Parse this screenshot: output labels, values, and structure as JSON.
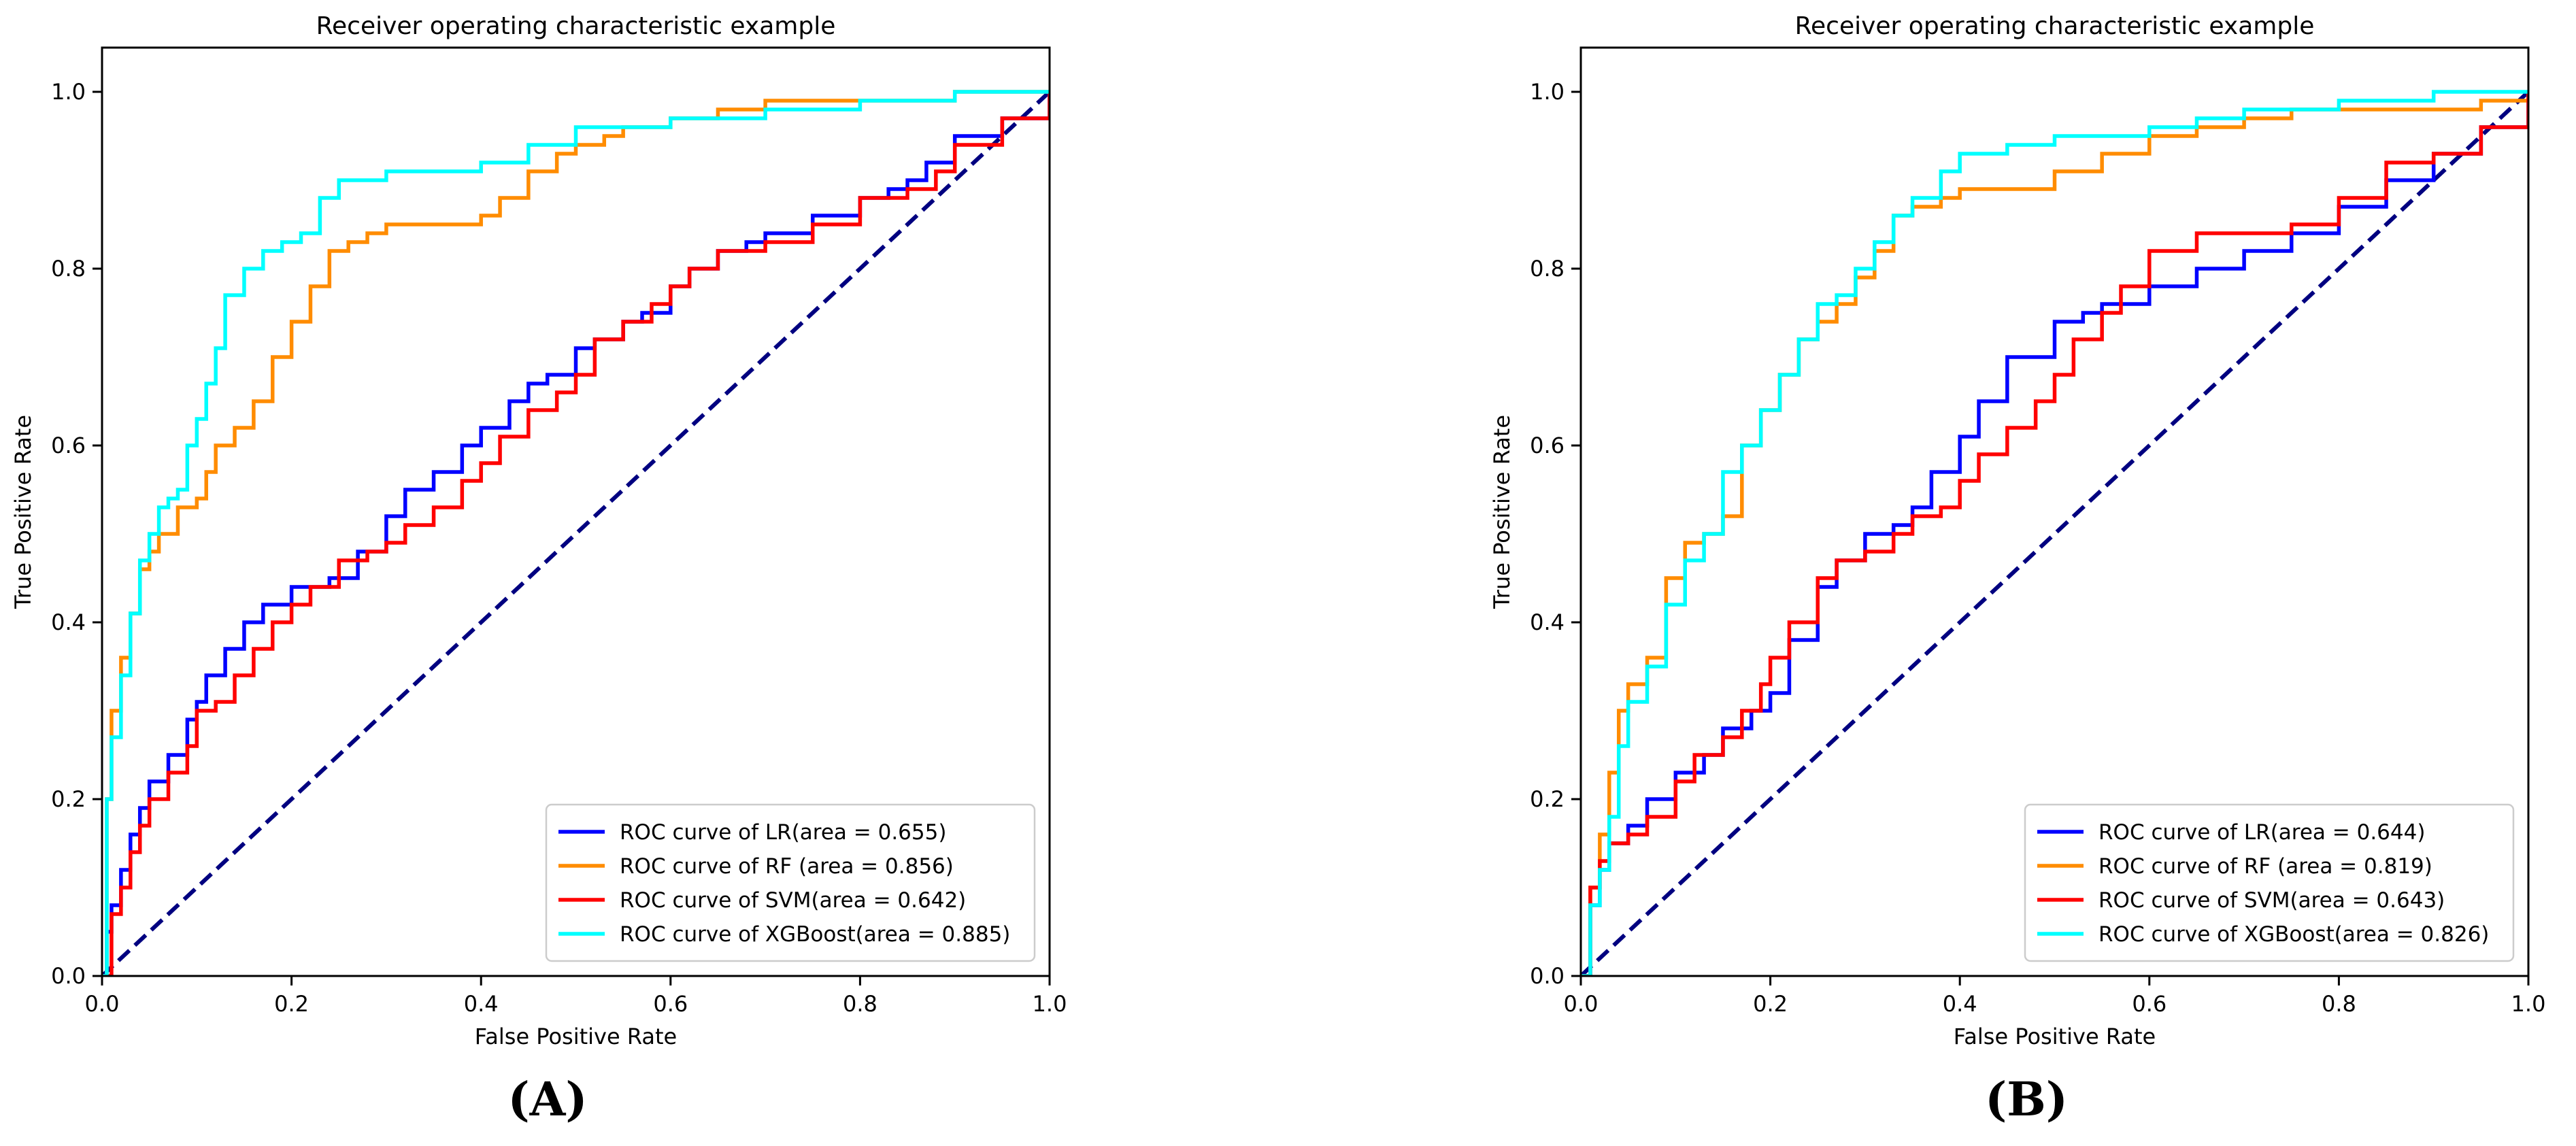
{
  "chart_data": [
    {
      "type": "line",
      "panel_label": "(A)",
      "title": "Receiver operating characteristic example",
      "xlabel": "False Positive Rate",
      "ylabel": "True Positive Rate",
      "xlim": [
        0,
        1
      ],
      "ylim": [
        0,
        1.05
      ],
      "xticks": [
        "0.0",
        "0.2",
        "0.4",
        "0.6",
        "0.8",
        "1.0"
      ],
      "yticks": [
        "0.0",
        "0.2",
        "0.4",
        "0.6",
        "0.8",
        "1.0"
      ],
      "grid": false,
      "legend_position": "lower-right",
      "series": [
        {
          "name": "ROC curve of LR(area = 0.655)",
          "color": "#0000ff",
          "x": [
            0,
            0.005,
            0.01,
            0.02,
            0.03,
            0.04,
            0.05,
            0.07,
            0.09,
            0.1,
            0.11,
            0.13,
            0.15,
            0.17,
            0.2,
            0.24,
            0.27,
            0.3,
            0.32,
            0.35,
            0.38,
            0.4,
            0.43,
            0.45,
            0.47,
            0.5,
            0.52,
            0.55,
            0.57,
            0.6,
            0.62,
            0.65,
            0.68,
            0.7,
            0.75,
            0.8,
            0.83,
            0.85,
            0.87,
            0.9,
            0.95,
            1.0
          ],
          "y": [
            0,
            0.05,
            0.08,
            0.12,
            0.16,
            0.19,
            0.22,
            0.25,
            0.29,
            0.31,
            0.34,
            0.37,
            0.4,
            0.42,
            0.44,
            0.45,
            0.48,
            0.52,
            0.55,
            0.57,
            0.6,
            0.62,
            0.65,
            0.67,
            0.68,
            0.71,
            0.72,
            0.74,
            0.75,
            0.78,
            0.8,
            0.82,
            0.83,
            0.84,
            0.86,
            0.88,
            0.89,
            0.9,
            0.92,
            0.95,
            0.97,
            1.0
          ]
        },
        {
          "name": "ROC curve of RF (area = 0.856)",
          "color": "#ff8c00",
          "x": [
            0,
            0.005,
            0.01,
            0.02,
            0.03,
            0.04,
            0.05,
            0.06,
            0.08,
            0.1,
            0.11,
            0.12,
            0.14,
            0.16,
            0.18,
            0.2,
            0.22,
            0.24,
            0.26,
            0.28,
            0.3,
            0.35,
            0.4,
            0.42,
            0.45,
            0.48,
            0.5,
            0.53,
            0.55,
            0.6,
            0.65,
            0.7,
            0.8,
            0.9,
            1.0
          ],
          "y": [
            0,
            0.2,
            0.3,
            0.36,
            0.41,
            0.46,
            0.48,
            0.5,
            0.53,
            0.54,
            0.57,
            0.6,
            0.62,
            0.65,
            0.7,
            0.74,
            0.78,
            0.82,
            0.83,
            0.84,
            0.85,
            0.85,
            0.86,
            0.88,
            0.91,
            0.93,
            0.94,
            0.95,
            0.96,
            0.97,
            0.98,
            0.99,
            0.99,
            1.0,
            1.0
          ]
        },
        {
          "name": "ROC curve of SVM(area = 0.642)",
          "color": "#ff0000",
          "x": [
            0,
            0.01,
            0.02,
            0.03,
            0.04,
            0.05,
            0.07,
            0.09,
            0.1,
            0.12,
            0.14,
            0.16,
            0.18,
            0.2,
            0.22,
            0.25,
            0.28,
            0.3,
            0.32,
            0.35,
            0.38,
            0.4,
            0.42,
            0.45,
            0.48,
            0.5,
            0.52,
            0.55,
            0.58,
            0.6,
            0.62,
            0.65,
            0.7,
            0.75,
            0.8,
            0.85,
            0.88,
            0.9,
            0.95,
            1.0
          ],
          "y": [
            0,
            0.07,
            0.1,
            0.14,
            0.17,
            0.2,
            0.23,
            0.26,
            0.3,
            0.31,
            0.34,
            0.37,
            0.4,
            0.42,
            0.44,
            0.47,
            0.48,
            0.49,
            0.51,
            0.53,
            0.56,
            0.58,
            0.61,
            0.64,
            0.66,
            0.68,
            0.72,
            0.74,
            0.76,
            0.78,
            0.8,
            0.82,
            0.83,
            0.85,
            0.88,
            0.89,
            0.91,
            0.94,
            0.97,
            1.0
          ]
        },
        {
          "name": "ROC curve of XGBoost(area = 0.885)",
          "color": "#00ffff",
          "x": [
            0,
            0.005,
            0.01,
            0.02,
            0.03,
            0.04,
            0.05,
            0.06,
            0.07,
            0.08,
            0.09,
            0.1,
            0.11,
            0.12,
            0.13,
            0.15,
            0.17,
            0.19,
            0.21,
            0.23,
            0.25,
            0.27,
            0.3,
            0.35,
            0.4,
            0.45,
            0.5,
            0.55,
            0.6,
            0.7,
            0.8,
            0.9,
            1.0
          ],
          "y": [
            0,
            0.2,
            0.27,
            0.34,
            0.41,
            0.47,
            0.5,
            0.53,
            0.54,
            0.55,
            0.6,
            0.63,
            0.67,
            0.71,
            0.77,
            0.8,
            0.82,
            0.83,
            0.84,
            0.88,
            0.9,
            0.9,
            0.91,
            0.91,
            0.92,
            0.94,
            0.96,
            0.96,
            0.97,
            0.98,
            0.99,
            1.0,
            1.0
          ]
        },
        {
          "name": "chance",
          "color": "#000080",
          "dashed": true,
          "in_legend": false,
          "x": [
            0,
            1
          ],
          "y": [
            0,
            1
          ]
        }
      ]
    },
    {
      "type": "line",
      "panel_label": "(B)",
      "title": "Receiver operating characteristic example",
      "xlabel": "False Positive Rate",
      "ylabel": "True Positive Rate",
      "xlim": [
        0,
        1
      ],
      "ylim": [
        0,
        1.05
      ],
      "xticks": [
        "0.0",
        "0.2",
        "0.4",
        "0.6",
        "0.8",
        "1.0"
      ],
      "yticks": [
        "0.0",
        "0.2",
        "0.4",
        "0.6",
        "0.8",
        "1.0"
      ],
      "grid": false,
      "legend_position": "lower-right",
      "series": [
        {
          "name": "ROC curve of LR(area = 0.644)",
          "color": "#0000ff",
          "x": [
            0,
            0.01,
            0.02,
            0.03,
            0.05,
            0.07,
            0.1,
            0.13,
            0.15,
            0.18,
            0.2,
            0.22,
            0.25,
            0.27,
            0.3,
            0.33,
            0.35,
            0.37,
            0.4,
            0.42,
            0.45,
            0.48,
            0.5,
            0.53,
            0.55,
            0.6,
            0.65,
            0.7,
            0.75,
            0.8,
            0.85,
            0.9,
            0.95,
            1.0
          ],
          "y": [
            0,
            0.08,
            0.12,
            0.15,
            0.17,
            0.2,
            0.23,
            0.25,
            0.28,
            0.3,
            0.32,
            0.38,
            0.44,
            0.47,
            0.5,
            0.51,
            0.53,
            0.57,
            0.61,
            0.65,
            0.7,
            0.7,
            0.74,
            0.75,
            0.76,
            0.78,
            0.8,
            0.82,
            0.84,
            0.87,
            0.9,
            0.93,
            0.96,
            1.0
          ]
        },
        {
          "name": "ROC curve of RF (area = 0.819)",
          "color": "#ff8c00",
          "x": [
            0,
            0.01,
            0.02,
            0.03,
            0.04,
            0.05,
            0.07,
            0.09,
            0.11,
            0.13,
            0.15,
            0.17,
            0.19,
            0.21,
            0.23,
            0.25,
            0.27,
            0.29,
            0.31,
            0.33,
            0.35,
            0.38,
            0.4,
            0.45,
            0.5,
            0.55,
            0.6,
            0.65,
            0.7,
            0.75,
            0.8,
            0.85,
            0.9,
            0.95,
            1.0
          ],
          "y": [
            0,
            0.1,
            0.16,
            0.23,
            0.3,
            0.33,
            0.36,
            0.45,
            0.49,
            0.5,
            0.52,
            0.6,
            0.64,
            0.68,
            0.72,
            0.74,
            0.76,
            0.79,
            0.82,
            0.86,
            0.87,
            0.88,
            0.89,
            0.89,
            0.91,
            0.93,
            0.95,
            0.96,
            0.97,
            0.98,
            0.98,
            0.98,
            0.98,
            0.99,
            1.0
          ]
        },
        {
          "name": "ROC curve of SVM(area = 0.643)",
          "color": "#ff0000",
          "x": [
            0,
            0.01,
            0.02,
            0.03,
            0.05,
            0.07,
            0.1,
            0.12,
            0.15,
            0.17,
            0.19,
            0.2,
            0.22,
            0.25,
            0.27,
            0.3,
            0.33,
            0.35,
            0.38,
            0.4,
            0.42,
            0.45,
            0.48,
            0.5,
            0.52,
            0.55,
            0.57,
            0.6,
            0.65,
            0.7,
            0.75,
            0.8,
            0.85,
            0.9,
            0.95,
            1.0
          ],
          "y": [
            0,
            0.1,
            0.13,
            0.15,
            0.16,
            0.18,
            0.22,
            0.25,
            0.27,
            0.3,
            0.33,
            0.36,
            0.4,
            0.45,
            0.47,
            0.48,
            0.5,
            0.52,
            0.53,
            0.56,
            0.59,
            0.62,
            0.65,
            0.68,
            0.72,
            0.75,
            0.78,
            0.82,
            0.84,
            0.84,
            0.85,
            0.88,
            0.92,
            0.93,
            0.96,
            1.0
          ]
        },
        {
          "name": "ROC curve of XGBoost(area = 0.826)",
          "color": "#00ffff",
          "x": [
            0,
            0.01,
            0.02,
            0.03,
            0.04,
            0.05,
            0.07,
            0.09,
            0.11,
            0.13,
            0.15,
            0.17,
            0.19,
            0.21,
            0.23,
            0.25,
            0.27,
            0.29,
            0.31,
            0.33,
            0.35,
            0.38,
            0.4,
            0.45,
            0.5,
            0.55,
            0.6,
            0.65,
            0.7,
            0.8,
            0.9,
            1.0
          ],
          "y": [
            0,
            0.08,
            0.12,
            0.18,
            0.26,
            0.31,
            0.35,
            0.42,
            0.47,
            0.5,
            0.57,
            0.6,
            0.64,
            0.68,
            0.72,
            0.76,
            0.77,
            0.8,
            0.83,
            0.86,
            0.88,
            0.91,
            0.93,
            0.94,
            0.95,
            0.95,
            0.96,
            0.97,
            0.98,
            0.99,
            1.0,
            1.0
          ]
        },
        {
          "name": "chance",
          "color": "#000080",
          "dashed": true,
          "in_legend": false,
          "x": [
            0,
            1
          ],
          "y": [
            0,
            1
          ]
        }
      ]
    }
  ]
}
